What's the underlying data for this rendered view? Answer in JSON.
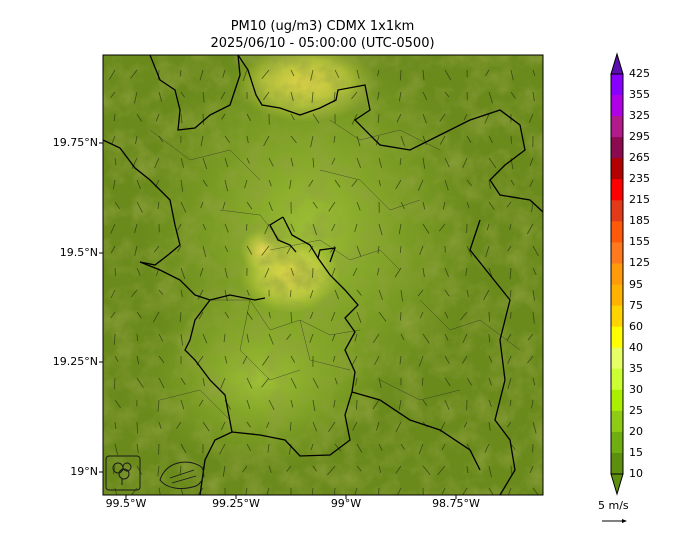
{
  "title": {
    "line1": "PM10 (ug/m3) CDMX 1x1km",
    "line2": "2025/06/10 - 05:00:00 (UTC-0500)"
  },
  "map": {
    "lat_labels": [
      "19.75°N",
      "19.5°N",
      "19.25°N",
      "19°N"
    ],
    "lon_labels": [
      "99.5°W",
      "99.25°W",
      "99°W",
      "98.75°W"
    ],
    "extent": {
      "lon_min": -99.55,
      "lon_max": -98.55,
      "lat_min": 18.95,
      "lat_max": 19.95
    },
    "logos": [
      "SEDEMA logo",
      "Ciudad de México logo"
    ]
  },
  "colorbar": {
    "ticks": [
      "425",
      "355",
      "325",
      "295",
      "265",
      "235",
      "215",
      "185",
      "155",
      "125",
      "95",
      "75",
      "60",
      "40",
      "35",
      "30",
      "25",
      "20",
      "15",
      "10"
    ],
    "colors": [
      "#5c0fb0",
      "#8a00ff",
      "#b000e6",
      "#b01a8a",
      "#8b0a50",
      "#b30000",
      "#ff0000",
      "#e33a1a",
      "#ff5a0a",
      "#ff7a1e",
      "#ff9a0a",
      "#ffb300",
      "#ffd400",
      "#ffff00",
      "#e6ff66",
      "#ccff33",
      "#aaee00",
      "#8ecb14",
      "#6fae10",
      "#5c8f0e"
    ]
  },
  "wind_reference": {
    "label": "5 m/s"
  }
}
